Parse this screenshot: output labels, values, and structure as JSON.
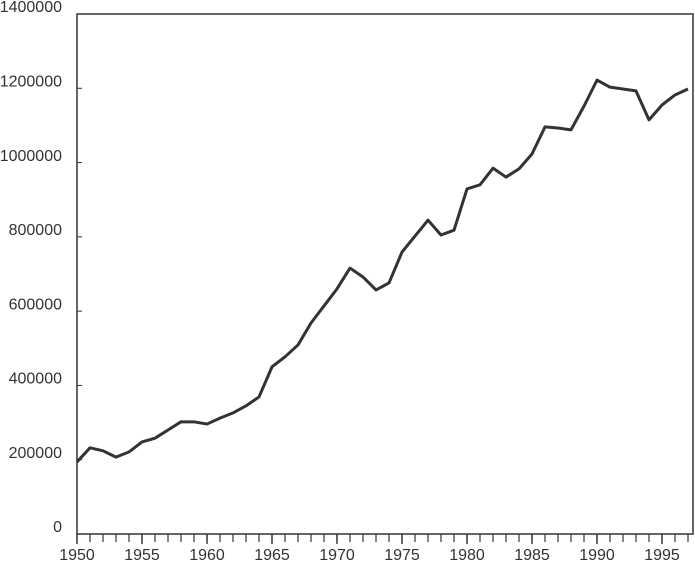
{
  "chart_data": {
    "type": "line",
    "x": [
      1950,
      1951,
      1952,
      1953,
      1954,
      1955,
      1956,
      1957,
      1958,
      1959,
      1960,
      1961,
      1962,
      1963,
      1964,
      1965,
      1966,
      1967,
      1968,
      1969,
      1970,
      1971,
      1972,
      1973,
      1974,
      1975,
      1976,
      1977,
      1978,
      1979,
      1980,
      1981,
      1982,
      1983,
      1984,
      1985,
      1986,
      1987,
      1988,
      1989,
      1990,
      1991,
      1992,
      1993,
      1994,
      1995,
      1996,
      1997
    ],
    "series": [
      {
        "color": "#333333",
        "values": [
          194000,
          232000,
          224000,
          207000,
          221000,
          248000,
          258000,
          280000,
          302000,
          302000,
          296000,
          312000,
          326000,
          345000,
          369000,
          450000,
          477000,
          509000,
          568000,
          614000,
          660000,
          716000,
          692000,
          657000,
          676000,
          759000,
          802000,
          845000,
          805000,
          818000,
          929000,
          940000,
          985000,
          961000,
          983000,
          1023000,
          1096000,
          1093000,
          1088000,
          1152000,
          1222000,
          1203000,
          1198000,
          1193000,
          1115000,
          1155000,
          1182000,
          1198000
        ]
      }
    ],
    "xlim": [
      1950,
      1997
    ],
    "xticks": [
      1950,
      1955,
      1960,
      1965,
      1970,
      1975,
      1980,
      1985,
      1990,
      1995
    ],
    "ylim": [
      0,
      1400000
    ],
    "yticks": [
      0,
      200000,
      400000,
      600000,
      800000,
      1000000,
      1200000,
      1400000
    ]
  }
}
